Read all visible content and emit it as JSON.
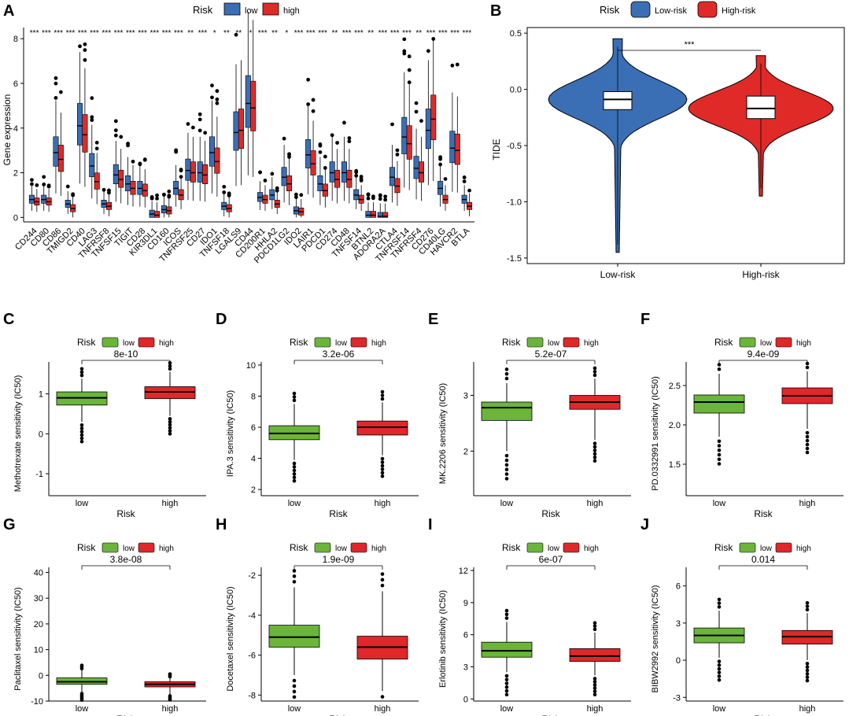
{
  "colors": {
    "low_blue": "#3a6fb5",
    "high_red": "#e02a27",
    "low_green": "#6bb53a",
    "high_red2": "#e0272a"
  },
  "panel_a": {
    "letter": "A",
    "legend_title": "Risk",
    "legend_low": "low",
    "legend_high": "high",
    "ylabel": "Gene expression",
    "ylim": [
      -0.2,
      8.5
    ],
    "yticks": [
      0,
      2,
      4,
      6,
      8
    ],
    "chart_data": {
      "type": "box",
      "title": "",
      "ylabel": "Gene expression",
      "categories": [
        "CD244",
        "CD80",
        "CD86",
        "TMIGD2",
        "CD40",
        "LAG3",
        "TNFRSF8",
        "TNFSF15",
        "TIGIT",
        "CD28",
        "KIR3DL1",
        "CD160",
        "ICOS",
        "TNFRSF25",
        "CD27",
        "IDO1",
        "TNFSF18",
        "LGALS9",
        "CD44",
        "CD200R1",
        "HHLA2",
        "PDCD1LG2",
        "IDO2",
        "LAIR1",
        "PDCD1",
        "CD274",
        "CD48",
        "TNFSF14",
        "BTNL2",
        "ADORA2A",
        "CTLA4",
        "TNFRSF14",
        "TNFRSF4",
        "CD276",
        "CD40LG",
        "HAVCR2",
        "BTLA"
      ],
      "significance": [
        "***",
        "***",
        "***",
        "***",
        "***",
        "***",
        "***",
        "***",
        "***",
        "***",
        "***",
        "***",
        "***",
        "**",
        "***",
        "*",
        "**",
        "**",
        "*",
        "***",
        "**",
        "*",
        "***",
        "***",
        "***",
        "**",
        "***",
        "***",
        "**",
        "***",
        "***",
        "***",
        "**",
        "***",
        "***",
        "***",
        "***"
      ],
      "series": [
        {
          "name": "low",
          "medians": [
            0.8,
            0.8,
            2.9,
            0.6,
            4.1,
            2.3,
            0.6,
            1.9,
            1.5,
            1.3,
            0.15,
            0.35,
            1.3,
            2.1,
            2.0,
            2.9,
            0.5,
            3.8,
            5.1,
            0.9,
            1.0,
            1.8,
            0.3,
            2.8,
            1.5,
            2.0,
            2.0,
            1.0,
            0.1,
            0.05,
            1.8,
            3.6,
            2.2,
            3.9,
            1.3,
            3.1,
            0.8
          ]
        },
        {
          "name": "high",
          "medians": [
            0.7,
            0.7,
            2.6,
            0.4,
            3.7,
            1.6,
            0.5,
            1.7,
            1.3,
            1.2,
            0.1,
            0.3,
            1.0,
            2.0,
            1.9,
            2.5,
            0.4,
            3.9,
            4.9,
            0.8,
            0.6,
            1.5,
            0.25,
            2.4,
            1.2,
            1.7,
            1.7,
            0.8,
            0.1,
            0.05,
            1.4,
            3.3,
            2.0,
            4.4,
            0.8,
            3.0,
            0.5
          ]
        }
      ]
    }
  },
  "panel_b": {
    "letter": "B",
    "legend_title": "Risk",
    "legend_low": "Low-risk",
    "legend_high": "High-risk",
    "ylabel": "TIDE",
    "sig": "***",
    "xlabels": [
      "Low-risk",
      "High-risk"
    ],
    "yticks": [
      "0.5",
      "0.0",
      "-0.5",
      "-1.0",
      "-1.5"
    ],
    "chart_data": {
      "type": "violin",
      "categories": [
        "Low-risk",
        "High-risk"
      ],
      "ylim": [
        -1.55,
        0.55
      ],
      "medians": [
        -0.09,
        -0.17
      ],
      "q1": [
        -0.18,
        -0.26
      ],
      "q3": [
        -0.02,
        -0.06
      ],
      "min": [
        -1.45,
        -0.95
      ],
      "max": [
        0.45,
        0.3
      ]
    }
  },
  "small_panels": [
    {
      "letter": "C",
      "legend_title": "Risk",
      "legend_low": "low",
      "legend_high": "high",
      "ylabel": "Methotrexate sensitivity (IC50)",
      "xlabel": "Risk",
      "xticks": [
        "low",
        "high"
      ],
      "pvalue": "8e-10",
      "yticks": [
        "-1",
        "0",
        "1"
      ],
      "ytick_values": [
        -1,
        0,
        1
      ],
      "ylim": [
        -1.55,
        1.8
      ],
      "low": {
        "q1": 0.72,
        "median": 0.9,
        "q3": 1.05,
        "wlo": 0.3,
        "whi": 1.38
      },
      "high": {
        "q1": 0.88,
        "median": 1.05,
        "q3": 1.18,
        "wlo": 0.45,
        "whi": 1.55
      }
    },
    {
      "letter": "D",
      "legend_title": "Risk",
      "legend_low": "low",
      "legend_high": "high",
      "ylabel": "IPA.3 sensitivity (IC50)",
      "xlabel": "Risk",
      "xticks": [
        "low",
        "high"
      ],
      "pvalue": "3.2e-06",
      "yticks": [
        "2",
        "4",
        "6",
        "8",
        "10"
      ],
      "ytick_values": [
        2,
        4,
        6,
        8,
        10
      ],
      "ylim": [
        1.6,
        10.2
      ],
      "low": {
        "q1": 5.2,
        "median": 5.6,
        "q3": 6.1,
        "wlo": 3.9,
        "whi": 7.5
      },
      "high": {
        "q1": 5.5,
        "median": 6.0,
        "q3": 6.4,
        "wlo": 4.2,
        "whi": 7.6
      }
    },
    {
      "letter": "E",
      "legend_title": "Risk",
      "legend_low": "low",
      "legend_high": "high",
      "ylabel": "MK.2206 sensitivity (IC50)",
      "xlabel": "Risk",
      "xticks": [
        "low",
        "high"
      ],
      "pvalue": "5.2e-07",
      "yticks": [
        "2",
        "3"
      ],
      "ytick_values": [
        2,
        3
      ],
      "ylim": [
        1.2,
        3.6
      ],
      "low": {
        "q1": 2.55,
        "median": 2.78,
        "q3": 2.88,
        "wlo": 2.0,
        "whi": 3.22
      },
      "high": {
        "q1": 2.75,
        "median": 2.88,
        "q3": 3.0,
        "wlo": 2.2,
        "whi": 3.3
      }
    },
    {
      "letter": "F",
      "legend_title": "Risk",
      "legend_low": "low",
      "legend_high": "high",
      "ylabel": "PD.0332991 sensitivity (IC50)",
      "xlabel": "Risk",
      "xticks": [
        "low",
        "high"
      ],
      "pvalue": "9.4e-09",
      "yticks": [
        "1.5",
        "2.0",
        "2.5"
      ],
      "ytick_values": [
        1.5,
        2.0,
        2.5
      ],
      "ylim": [
        1.1,
        2.8
      ],
      "low": {
        "q1": 2.15,
        "median": 2.29,
        "q3": 2.38,
        "wlo": 1.85,
        "whi": 2.65
      },
      "high": {
        "q1": 2.27,
        "median": 2.37,
        "q3": 2.47,
        "wlo": 1.95,
        "whi": 2.68
      }
    },
    {
      "letter": "G",
      "legend_title": "Risk",
      "legend_low": "low",
      "legend_high": "high",
      "ylabel": "Paclitaxel sensitivity (IC50)",
      "xlabel": "Risk",
      "xticks": [
        "low",
        "high"
      ],
      "pvalue": "3.8e-08",
      "yticks": [
        "-10",
        "0",
        "10",
        "20",
        "30",
        "40"
      ],
      "ytick_values": [
        -10,
        0,
        10,
        20,
        30,
        40
      ],
      "ylim": [
        -10,
        42
      ],
      "low": {
        "q1": -3.5,
        "median": -2.5,
        "q3": -1.0,
        "wlo": -6.5,
        "whi": 2.0
      },
      "high": {
        "q1": -4.5,
        "median": -3.5,
        "q3": -2.5,
        "wlo": -7.5,
        "whi": -1.0
      }
    },
    {
      "letter": "H",
      "legend_title": "Risk",
      "legend_low": "low",
      "legend_high": "high",
      "ylabel": "Docetaxel sensitivity (IC50)",
      "xlabel": "Risk",
      "xticks": [
        "low",
        "high"
      ],
      "pvalue": "1.9e-09",
      "yticks": [
        "-8",
        "-6",
        "-4",
        "-2"
      ],
      "ytick_values": [
        -8,
        -6,
        -4,
        -2
      ],
      "ylim": [
        -8.3,
        -1.6
      ],
      "low": {
        "q1": -5.6,
        "median": -5.1,
        "q3": -4.5,
        "wlo": -7.0,
        "whi": -2.6
      },
      "high": {
        "q1": -6.2,
        "median": -5.6,
        "q3": -5.05,
        "wlo": -7.8,
        "whi": -2.8
      }
    },
    {
      "letter": "I",
      "legend_title": "Risk",
      "legend_low": "low",
      "legend_high": "high",
      "ylabel": "Erlotinib sensitivity (IC50)",
      "xlabel": "Risk",
      "xticks": [
        "low",
        "high"
      ],
      "pvalue": "6e-07",
      "yticks": [
        "0",
        "3",
        "6",
        "9",
        "12"
      ],
      "ytick_values": [
        0,
        3,
        6,
        9,
        12
      ],
      "ylim": [
        -0.2,
        12.3
      ],
      "low": {
        "q1": 3.9,
        "median": 4.5,
        "q3": 5.3,
        "wlo": 2.5,
        "whi": 7.2
      },
      "high": {
        "q1": 3.5,
        "median": 4.0,
        "q3": 4.7,
        "wlo": 2.2,
        "whi": 6.2
      }
    },
    {
      "letter": "J",
      "legend_title": "Risk",
      "legend_low": "low",
      "legend_high": "high",
      "ylabel": "BIBW2992 sensitivity (IC50)",
      "xlabel": "Risk",
      "xticks": [
        "low",
        "high"
      ],
      "pvalue": "0.014",
      "yticks": [
        "-3",
        "0",
        "3",
        "6"
      ],
      "ytick_values": [
        -3,
        0,
        3,
        6
      ],
      "ylim": [
        -3.3,
        7.5
      ],
      "low": {
        "q1": 1.4,
        "median": 2.0,
        "q3": 2.6,
        "wlo": 0.2,
        "whi": 4.0
      },
      "high": {
        "q1": 1.3,
        "median": 1.9,
        "q3": 2.4,
        "wlo": 0.0,
        "whi": 3.8
      }
    }
  ]
}
